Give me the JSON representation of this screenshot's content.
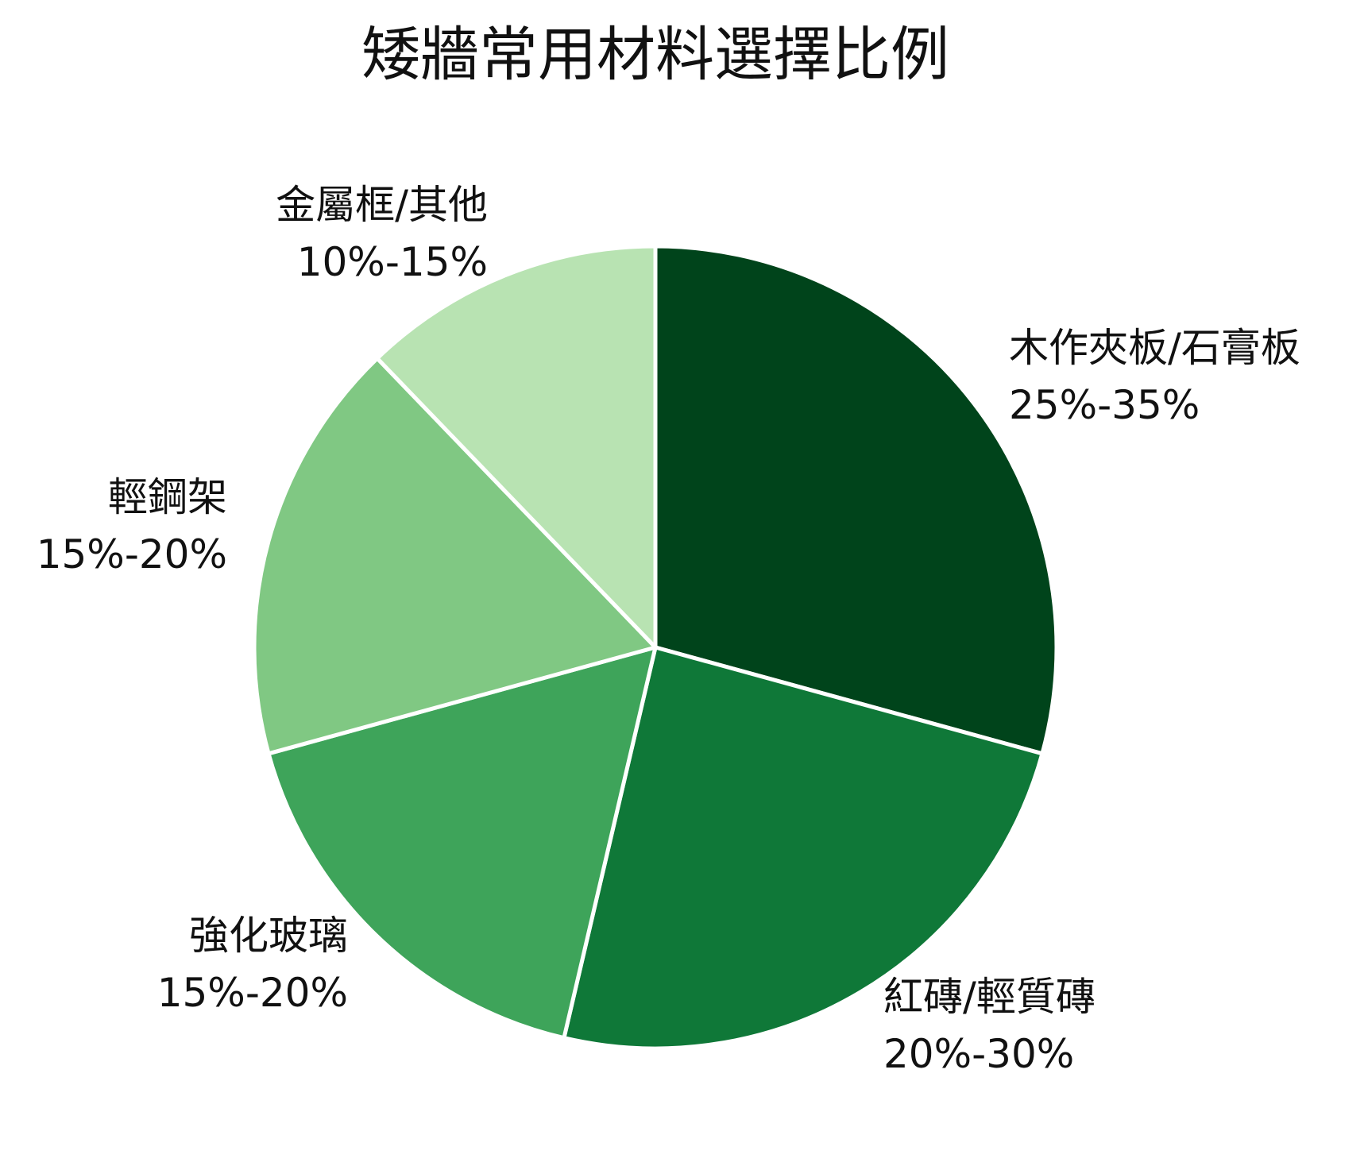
{
  "chart_data": {
    "type": "pie",
    "title": "矮牆常用材料選擇比例",
    "start_angle_deg": 90,
    "direction": "clockwise",
    "slices": [
      {
        "label": "木作夾板/石膏板",
        "range_text": "25%-35%",
        "value": 30,
        "color": "#00441b"
      },
      {
        "label": "紅磚/輕質磚",
        "range_text": "20%-30%",
        "value": 25,
        "color": "#0f7838"
      },
      {
        "label": "強化玻璃",
        "range_text": "15%-20%",
        "value": 17.5,
        "color": "#3ea45a"
      },
      {
        "label": "輕鋼架",
        "range_text": "15%-20%",
        "value": 17.5,
        "color": "#80c883"
      },
      {
        "label": "金屬框/其他",
        "range_text": "10%-15%",
        "value": 12.5,
        "color": "#b8e3b2"
      }
    ]
  }
}
